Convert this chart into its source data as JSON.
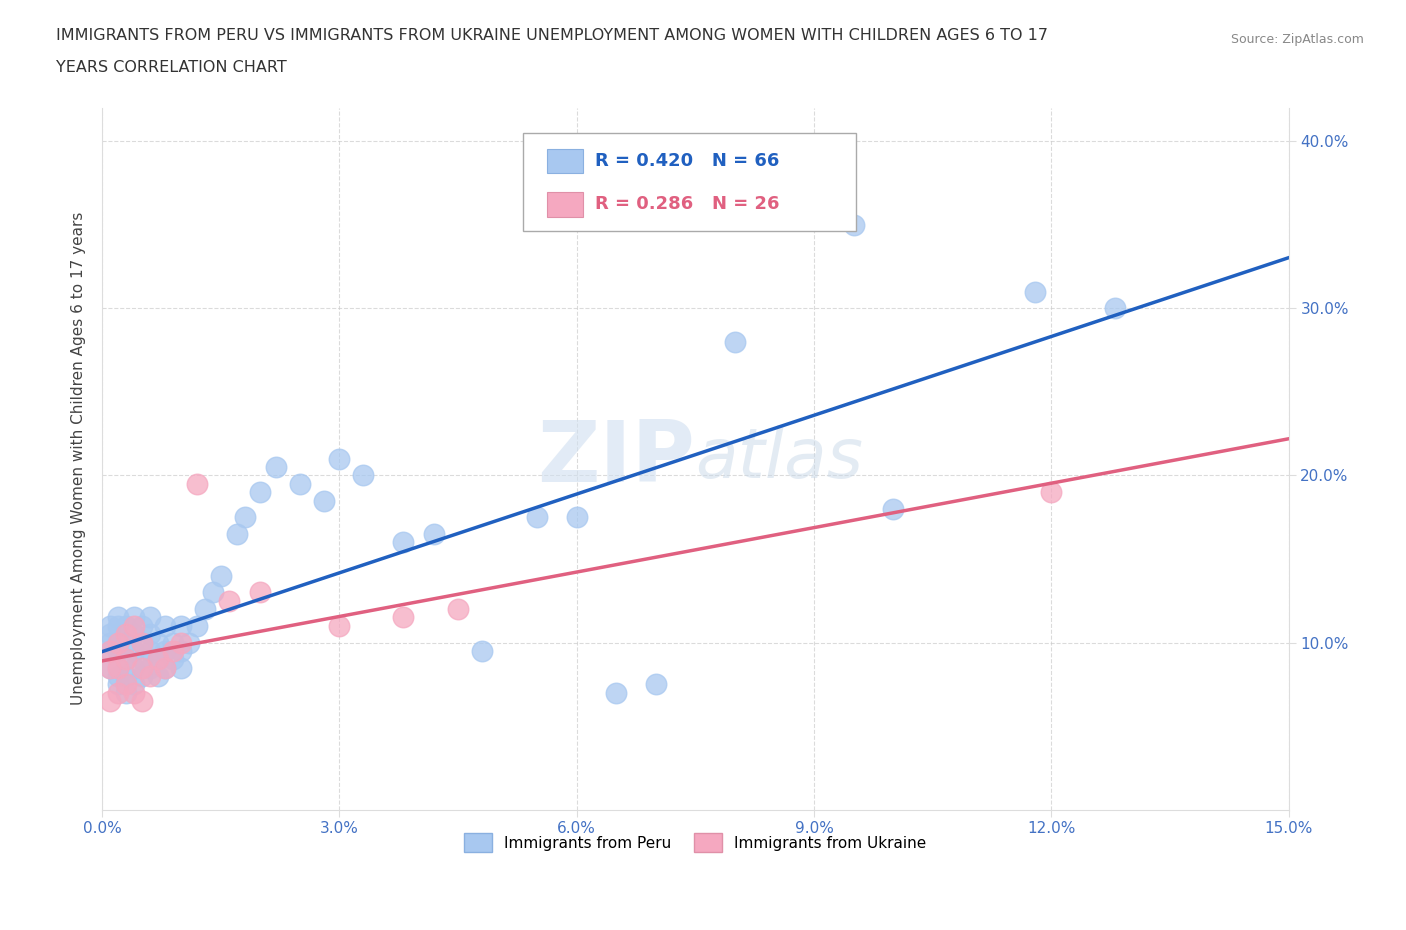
{
  "title_line1": "IMMIGRANTS FROM PERU VS IMMIGRANTS FROM UKRAINE UNEMPLOYMENT AMONG WOMEN WITH CHILDREN AGES 6 TO 17",
  "title_line2": "YEARS CORRELATION CHART",
  "source": "Source: ZipAtlas.com",
  "ylabel_axis": "Unemployment Among Women with Children Ages 6 to 17 years",
  "xlim": [
    0.0,
    0.15
  ],
  "ylim": [
    0.0,
    0.42
  ],
  "xticks": [
    0.0,
    0.03,
    0.06,
    0.09,
    0.12,
    0.15
  ],
  "xticklabels": [
    "0.0%",
    "3.0%",
    "6.0%",
    "9.0%",
    "12.0%",
    "15.0%"
  ],
  "yticks": [
    0.1,
    0.2,
    0.3,
    0.4
  ],
  "yticklabels": [
    "10.0%",
    "20.0%",
    "30.0%",
    "40.0%"
  ],
  "peru_R": 0.42,
  "peru_N": 66,
  "ukraine_R": 0.286,
  "ukraine_N": 26,
  "peru_color": "#a8c8f0",
  "ukraine_color": "#f5a8c0",
  "peru_line_color": "#2060c0",
  "ukraine_line_color": "#e06080",
  "watermark_zip": "ZIP",
  "watermark_atlas": "atlas",
  "peru_x": [
    0.001,
    0.001,
    0.001,
    0.001,
    0.001,
    0.002,
    0.002,
    0.002,
    0.002,
    0.002,
    0.002,
    0.002,
    0.003,
    0.003,
    0.003,
    0.003,
    0.003,
    0.004,
    0.004,
    0.004,
    0.004,
    0.004,
    0.005,
    0.005,
    0.005,
    0.005,
    0.006,
    0.006,
    0.006,
    0.006,
    0.007,
    0.007,
    0.007,
    0.008,
    0.008,
    0.008,
    0.009,
    0.009,
    0.01,
    0.01,
    0.01,
    0.011,
    0.012,
    0.013,
    0.014,
    0.015,
    0.017,
    0.018,
    0.02,
    0.022,
    0.025,
    0.028,
    0.03,
    0.033,
    0.038,
    0.042,
    0.048,
    0.055,
    0.06,
    0.065,
    0.07,
    0.08,
    0.095,
    0.1,
    0.118,
    0.128
  ],
  "peru_y": [
    0.085,
    0.095,
    0.1,
    0.105,
    0.11,
    0.075,
    0.08,
    0.085,
    0.095,
    0.1,
    0.11,
    0.115,
    0.07,
    0.08,
    0.09,
    0.1,
    0.11,
    0.075,
    0.085,
    0.095,
    0.105,
    0.115,
    0.08,
    0.09,
    0.1,
    0.11,
    0.085,
    0.095,
    0.105,
    0.115,
    0.08,
    0.09,
    0.1,
    0.085,
    0.095,
    0.11,
    0.09,
    0.1,
    0.085,
    0.095,
    0.11,
    0.1,
    0.11,
    0.12,
    0.13,
    0.14,
    0.165,
    0.175,
    0.19,
    0.205,
    0.195,
    0.185,
    0.21,
    0.2,
    0.16,
    0.165,
    0.095,
    0.175,
    0.175,
    0.07,
    0.075,
    0.28,
    0.35,
    0.18,
    0.31,
    0.3
  ],
  "ukraine_x": [
    0.001,
    0.001,
    0.001,
    0.002,
    0.002,
    0.002,
    0.003,
    0.003,
    0.003,
    0.004,
    0.004,
    0.005,
    0.005,
    0.005,
    0.006,
    0.007,
    0.008,
    0.009,
    0.01,
    0.012,
    0.016,
    0.02,
    0.03,
    0.038,
    0.045,
    0.12
  ],
  "ukraine_y": [
    0.065,
    0.085,
    0.095,
    0.07,
    0.085,
    0.1,
    0.075,
    0.09,
    0.105,
    0.07,
    0.11,
    0.065,
    0.085,
    0.1,
    0.08,
    0.09,
    0.085,
    0.095,
    0.1,
    0.195,
    0.125,
    0.13,
    0.11,
    0.115,
    0.12,
    0.19
  ]
}
